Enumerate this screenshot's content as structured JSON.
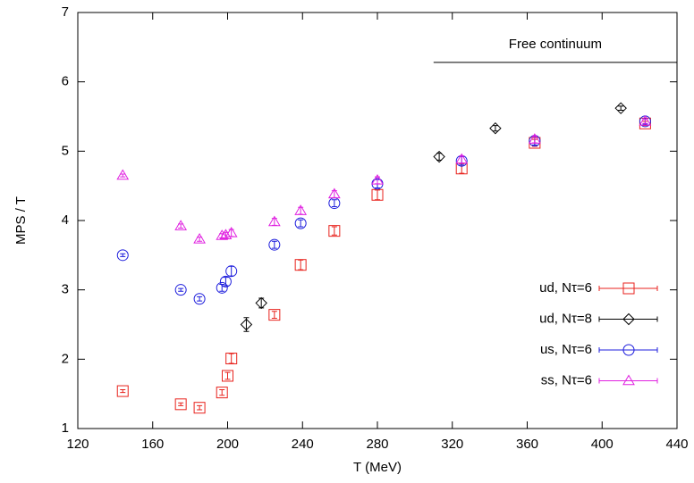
{
  "chart_data": {
    "type": "scatter",
    "x_label": "T (MeV)",
    "y_label": "MPS / T",
    "xlim": [
      120,
      440
    ],
    "xticks": [
      120,
      160,
      200,
      240,
      280,
      320,
      360,
      400,
      440
    ],
    "ylim": [
      1,
      7
    ],
    "yticks": [
      1,
      2,
      3,
      4,
      5,
      6,
      7
    ],
    "annotation": {
      "text": "Free continuum",
      "x": [
        310,
        440
      ],
      "y": 6.28
    },
    "legend": "right",
    "series": [
      {
        "name": "ud, Nτ=6",
        "color": "#e8221c",
        "marker": "square",
        "x": [
          144,
          175,
          185,
          197,
          200,
          202,
          225,
          239,
          257,
          280,
          325,
          364,
          423
        ],
        "values": [
          1.54,
          1.35,
          1.3,
          1.52,
          1.76,
          2.01,
          2.64,
          3.36,
          3.85,
          4.37,
          4.75,
          5.12,
          5.4
        ],
        "errors": [
          0.02,
          0.02,
          0.03,
          0.04,
          0.05,
          0.07,
          0.05,
          0.07,
          0.06,
          0.07,
          0.07,
          0.05,
          0.03
        ]
      },
      {
        "name": "ud, Nτ=8",
        "color": "#000000",
        "marker": "diamond",
        "x": [
          210,
          218,
          313,
          343,
          410
        ],
        "values": [
          2.5,
          2.81,
          4.92,
          5.33,
          5.62
        ],
        "errors": [
          0.1,
          0.07,
          0.05,
          0.04,
          0.03
        ]
      },
      {
        "name": "us, Nτ=6",
        "color": "#1c1cdc",
        "marker": "circle",
        "x": [
          144,
          175,
          185,
          197,
          199,
          202,
          225,
          239,
          257,
          280,
          325,
          364,
          423
        ],
        "values": [
          3.5,
          3.0,
          2.87,
          3.03,
          3.12,
          3.27,
          3.65,
          3.96,
          4.25,
          4.53,
          4.86,
          5.15,
          5.43
        ],
        "errors": [
          0.02,
          0.02,
          0.03,
          0.05,
          0.06,
          0.07,
          0.05,
          0.05,
          0.05,
          0.06,
          0.06,
          0.06,
          0.04
        ]
      },
      {
        "name": "ss, Nτ=6",
        "color": "#e020e0",
        "marker": "triangle",
        "x": [
          144,
          175,
          185,
          197,
          199,
          202,
          225,
          239,
          257,
          280,
          325,
          364,
          423
        ],
        "values": [
          4.65,
          3.92,
          3.73,
          3.78,
          3.79,
          3.82,
          3.98,
          4.14,
          4.38,
          4.58,
          4.88,
          5.17,
          5.43
        ],
        "errors": [
          0.02,
          0.03,
          0.03,
          0.03,
          0.04,
          0.05,
          0.05,
          0.05,
          0.05,
          0.05,
          0.05,
          0.05,
          0.03
        ]
      }
    ]
  }
}
